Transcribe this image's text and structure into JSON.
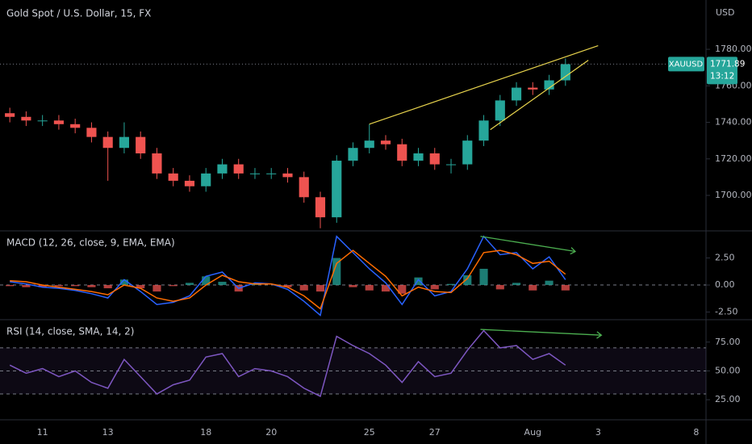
{
  "chart_data": [
    {
      "type": "candlestick",
      "title": "Gold Spot / U.S. Dollar, 15, FX",
      "currency": "USD",
      "symbol": "XAUUSD",
      "countdown": "13:12",
      "x": [
        -1,
        -0.5,
        0,
        0.5,
        1,
        1.5,
        2,
        2.5,
        3,
        3.5,
        4,
        4.5,
        5,
        5.5,
        6,
        6.5,
        7,
        7.5,
        8,
        8.5,
        9,
        9.5,
        10,
        10.5,
        11,
        11.5,
        12,
        12.5,
        13,
        13.5,
        14,
        14.5,
        15,
        15.5,
        16
      ],
      "open": [
        1745,
        1743,
        1741,
        1741,
        1739,
        1737,
        1732,
        1726,
        1732,
        1723,
        1712,
        1708,
        1705,
        1712,
        1717,
        1712,
        1712,
        1712,
        1710,
        1699,
        1688,
        1719,
        1726,
        1730,
        1728,
        1719,
        1723,
        1717,
        1717,
        1730,
        1741,
        1752,
        1759,
        1758,
        1763
      ],
      "high": [
        1748,
        1746,
        1744,
        1744,
        1742,
        1740,
        1735,
        1740,
        1735,
        1726,
        1715,
        1711,
        1715,
        1720,
        1720,
        1715,
        1715,
        1715,
        1713,
        1702,
        1722,
        1729,
        1739,
        1733,
        1731,
        1726,
        1726,
        1720,
        1733,
        1744,
        1755,
        1762,
        1762,
        1766,
        1775
      ],
      "low": [
        1740,
        1738,
        1738,
        1736,
        1734,
        1729,
        1708,
        1723,
        1720,
        1709,
        1705,
        1702,
        1702,
        1709,
        1709,
        1709,
        1709,
        1707,
        1696,
        1682,
        1685,
        1716,
        1723,
        1725,
        1716,
        1716,
        1714,
        1712,
        1714,
        1727,
        1738,
        1749,
        1755,
        1755,
        1760
      ],
      "close": [
        1743,
        1741,
        1741,
        1739,
        1737,
        1732,
        1726,
        1732,
        1723,
        1712,
        1708,
        1705,
        1712,
        1717,
        1712,
        1712,
        1712,
        1710,
        1699,
        1688,
        1719,
        1726,
        1730,
        1728,
        1719,
        1723,
        1717,
        1717,
        1730,
        1741,
        1752,
        1759,
        1758,
        1763,
        1771.89
      ],
      "up_color": "#26a69a",
      "down_color": "#ef5350",
      "xlim": [
        -1.3,
        20.3
      ],
      "xticks": [
        {
          "value": 0,
          "label": "11"
        },
        {
          "value": 2,
          "label": "13"
        },
        {
          "value": 5,
          "label": "18"
        },
        {
          "value": 7,
          "label": "20"
        },
        {
          "value": 10,
          "label": "25"
        },
        {
          "value": 12,
          "label": "27"
        },
        {
          "value": 15,
          "label": "Aug"
        },
        {
          "value": 17,
          "label": "3"
        },
        {
          "value": 20,
          "label": "8"
        }
      ],
      "ylim": [
        1681,
        1807
      ],
      "yticks": [
        {
          "value": 1700,
          "label": "1700.00"
        },
        {
          "value": 1720,
          "label": "1720.00"
        },
        {
          "value": 1740,
          "label": "1740.00"
        },
        {
          "value": 1760,
          "label": "1760.00"
        },
        {
          "value": 1780,
          "label": "1780.00"
        }
      ],
      "trendlines": [
        {
          "x": [
            10,
            17
          ],
          "y": [
            1739,
            1782
          ],
          "color": "#e8d44d"
        },
        {
          "x": [
            13.7,
            16.7
          ],
          "y": [
            1736,
            1774
          ],
          "color": "#e8d44d"
        }
      ]
    },
    {
      "type": "macd",
      "title": "MACD (12, 26, close, 9, EMA, EMA)",
      "ylim": [
        -3.13,
        4.93
      ],
      "yticks": [
        {
          "value": -2.5,
          "label": "-2.50"
        },
        {
          "value": 0,
          "label": "0.00"
        },
        {
          "value": 2.5,
          "label": "2.50"
        }
      ],
      "hlines": [
        0
      ],
      "series": [
        {
          "style": "histogram",
          "up_color": "#26a69a",
          "down_color": "#ef5350",
          "values": [
            -0.1,
            -0.2,
            -0.2,
            -0.1,
            -0.1,
            -0.2,
            -0.3,
            0.5,
            -0.3,
            -0.6,
            -0.1,
            0.2,
            0.8,
            0.3,
            -0.6,
            0.1,
            0,
            -0.2,
            -0.5,
            -0.6,
            2.5,
            -0.2,
            -0.5,
            -0.6,
            -0.8,
            0.7,
            -0.4,
            0.1,
            0.9,
            1.5,
            -0.4,
            0.2,
            -0.5,
            0.4,
            -0.5
          ]
        },
        {
          "style": "line",
          "color": "#2962ff",
          "values": [
            0.3,
            0.1,
            -0.2,
            -0.3,
            -0.5,
            -0.8,
            -1.2,
            0.5,
            -0.6,
            -1.8,
            -1.6,
            -1,
            0.8,
            1.2,
            -0.3,
            0.2,
            0.1,
            -0.4,
            -1.5,
            -2.8,
            4.5,
            3,
            1.5,
            0.2,
            -1.8,
            0.5,
            -1,
            -0.6,
            1.5,
            4.5,
            2.8,
            3,
            1.5,
            2.6,
            0.5
          ]
        },
        {
          "style": "line",
          "color": "#ff6d00",
          "values": [
            0.4,
            0.3,
            0,
            -0.2,
            -0.4,
            -0.6,
            -0.9,
            0,
            -0.3,
            -1.2,
            -1.5,
            -1.2,
            0,
            0.9,
            0.3,
            0.1,
            0.1,
            -0.2,
            -1,
            -2.2,
            2,
            3.2,
            2,
            0.8,
            -1,
            -0.2,
            -0.6,
            -0.7,
            0.6,
            3,
            3.2,
            2.8,
            2,
            2.2,
            1
          ]
        }
      ],
      "arrows": [
        {
          "x": [
            13.4,
            16.3
          ],
          "y": [
            4.5,
            3.1
          ],
          "color": "#4caf50"
        }
      ]
    },
    {
      "type": "rsi",
      "title": "RSI (14, close, SMA, 14, 2)",
      "ylim": [
        8.3,
        93.75
      ],
      "yticks": [
        {
          "value": 25,
          "label": "25.00"
        },
        {
          "value": 50,
          "label": "50.00"
        },
        {
          "value": 75,
          "label": "75.00"
        }
      ],
      "band": [
        30,
        70
      ],
      "band_color": "#7e57c2",
      "hlines": [
        70,
        50,
        30
      ],
      "series": [
        {
          "style": "line",
          "color": "#7e57c2",
          "values": [
            55,
            48,
            52,
            45,
            50,
            40,
            35,
            60,
            45,
            30,
            38,
            42,
            62,
            65,
            45,
            52,
            50,
            45,
            35,
            28,
            80,
            72,
            65,
            55,
            40,
            58,
            45,
            48,
            68,
            85,
            70,
            72,
            60,
            65,
            55
          ]
        }
      ],
      "arrows": [
        {
          "x": [
            13.4,
            17.1
          ],
          "y": [
            86,
            81
          ],
          "color": "#4caf50"
        }
      ]
    }
  ]
}
